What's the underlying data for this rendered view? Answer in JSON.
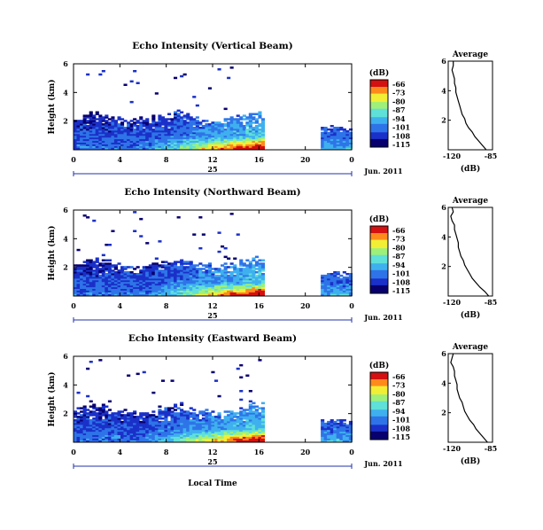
{
  "colors": {
    "colormap": [
      "#08006e",
      "#1a30c8",
      "#2e74e8",
      "#3fb0ee",
      "#5fe0d8",
      "#9ef07a",
      "#f2ee36",
      "#ff8a1c",
      "#d41010"
    ]
  },
  "footer": {
    "x_title": "Local Time"
  },
  "chart_data": [
    {
      "type": "heatmap",
      "title": "Echo Intensity (Vertical Beam)",
      "ylabel": "Height (km)",
      "yticks": [
        "2",
        "4",
        "6"
      ],
      "ylim": [
        0,
        6
      ],
      "xticks": [
        "0",
        "4",
        "8",
        "12",
        "16",
        "20",
        "0"
      ],
      "xlim": [
        0,
        24
      ],
      "date_tick": "25",
      "date_label": "Jun. 2011",
      "colorbar": {
        "unit": "(dB)",
        "ticks": [
          "-66",
          "-73",
          "-80",
          "-87",
          "-94",
          "-101",
          "-108",
          "-115"
        ],
        "range": [
          -115,
          -66
        ]
      },
      "profile": {
        "title": "Average",
        "xlabel": "(dB)",
        "xticks": [
          "-120",
          "-85"
        ],
        "xlim": [
          -120,
          -85
        ],
        "yticks": [
          "2",
          "4",
          "6"
        ],
        "height_km": [
          0,
          0.3,
          0.6,
          0.9,
          1.2,
          1.5,
          1.8,
          2.1,
          2.4,
          2.7,
          3.0,
          3.3,
          3.6,
          3.9,
          4.2,
          4.5,
          4.8,
          5.1,
          5.4,
          5.7,
          6.0
        ],
        "db": [
          -90,
          -93,
          -96,
          -99,
          -101,
          -104,
          -106,
          -107,
          -109,
          -110,
          -111,
          -112,
          -113,
          -114,
          -114,
          -115,
          -115,
          -116,
          -117,
          -116,
          -116
        ]
      }
    },
    {
      "type": "heatmap",
      "title": "Echo Intensity (Northward Beam)",
      "ylabel": "Height (km)",
      "yticks": [
        "2",
        "4",
        "6"
      ],
      "ylim": [
        0,
        6
      ],
      "xticks": [
        "0",
        "4",
        "8",
        "12",
        "16",
        "20",
        "0"
      ],
      "xlim": [
        0,
        24
      ],
      "date_tick": "25",
      "date_label": "Jun. 2011",
      "colorbar": {
        "unit": "(dB)",
        "ticks": [
          "-66",
          "-73",
          "-80",
          "-87",
          "-94",
          "-101",
          "-108",
          "-115"
        ],
        "range": [
          -115,
          -66
        ]
      },
      "profile": {
        "title": "Average",
        "xlabel": "(dB)",
        "xticks": [
          "-120",
          "-85"
        ],
        "xlim": [
          -120,
          -85
        ],
        "yticks": [
          "2",
          "4",
          "6"
        ],
        "height_km": [
          0,
          0.3,
          0.6,
          0.9,
          1.2,
          1.5,
          1.8,
          2.1,
          2.4,
          2.7,
          3.0,
          3.3,
          3.6,
          3.9,
          4.2,
          4.5,
          4.8,
          5.1,
          5.4,
          5.7,
          6.0
        ],
        "db": [
          -88,
          -91,
          -95,
          -98,
          -101,
          -103,
          -105,
          -107,
          -108,
          -110,
          -111,
          -112,
          -112,
          -113,
          -114,
          -115,
          -115,
          -117,
          -118,
          -116,
          -117
        ]
      }
    },
    {
      "type": "heatmap",
      "title": "Echo Intensity (Eastward Beam)",
      "ylabel": "Height (km)",
      "yticks": [
        "2",
        "4",
        "6"
      ],
      "ylim": [
        0,
        6
      ],
      "xticks": [
        "0",
        "4",
        "8",
        "12",
        "16",
        "20",
        "0"
      ],
      "xlim": [
        0,
        24
      ],
      "date_tick": "25",
      "date_label": "Jun. 2011",
      "colorbar": {
        "unit": "(dB)",
        "ticks": [
          "-66",
          "-73",
          "-80",
          "-87",
          "-94",
          "-101",
          "-108",
          "-115"
        ],
        "range": [
          -115,
          -66
        ]
      },
      "profile": {
        "title": "Average",
        "xlabel": "(dB)",
        "xticks": [
          "-120",
          "-85"
        ],
        "xlim": [
          -120,
          -85
        ],
        "yticks": [
          "2",
          "4",
          "6"
        ],
        "height_km": [
          0,
          0.3,
          0.6,
          0.9,
          1.2,
          1.5,
          1.8,
          2.1,
          2.4,
          2.7,
          3.0,
          3.3,
          3.6,
          3.9,
          4.2,
          4.5,
          4.8,
          5.1,
          5.4,
          5.7,
          6.0
        ],
        "db": [
          -89,
          -92,
          -95,
          -98,
          -100,
          -103,
          -105,
          -107,
          -108,
          -109,
          -111,
          -112,
          -113,
          -113,
          -114,
          -115,
          -115,
          -116,
          -118,
          -117,
          -116
        ]
      }
    }
  ]
}
